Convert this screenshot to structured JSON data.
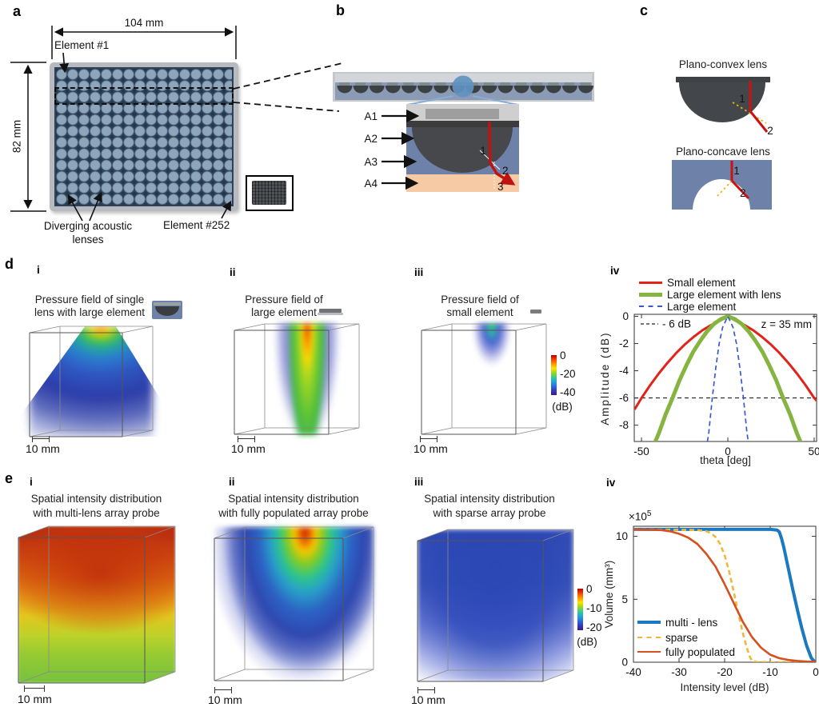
{
  "figure": {
    "panel_a": {
      "label": "a",
      "width_dim": "104 mm",
      "height_dim": "82 mm",
      "element_first": "Element #1",
      "element_last": "Element #252",
      "lens_caption_line1": "Diverging acoustic",
      "lens_caption_line2": "lenses"
    },
    "panel_b": {
      "label": "b",
      "layer_labels": [
        "A1",
        "A2",
        "A3",
        "A4"
      ],
      "ray_point_labels": [
        "1",
        "2",
        "3"
      ]
    },
    "panel_c": {
      "label": "c",
      "convex_title": "Plano-convex lens",
      "concave_title": "Plano-concave lens",
      "convex_ray_points": [
        "1",
        "2"
      ],
      "concave_ray_points": [
        "1",
        "2"
      ]
    },
    "panel_d": {
      "label": "d",
      "i": {
        "num": "i",
        "title_line1": "Pressure field of single",
        "title_line2": "lens with large element",
        "scalebar": "10 mm"
      },
      "ii": {
        "num": "ii",
        "title_line1": "Pressure field of",
        "title_line2": "large element",
        "scalebar": "10 mm"
      },
      "iii": {
        "num": "iii",
        "title_line1": "Pressure field of",
        "title_line2": "small element",
        "scalebar": "10 mm"
      },
      "iv": {
        "num": "iv"
      },
      "colorbar": {
        "ticks": [
          "0",
          "-20",
          "-40"
        ],
        "unit": "(dB)"
      }
    },
    "panel_e": {
      "label": "e",
      "i": {
        "num": "i",
        "title_line1": "Spatial intensity distribution",
        "title_line2": "with multi-lens array probe",
        "scalebar": "10 mm"
      },
      "ii": {
        "num": "ii",
        "title_line1": "Spatial intensity distribution",
        "title_line2": "with fully populated array probe",
        "scalebar": "10 mm"
      },
      "iii": {
        "num": "iii",
        "title_line1": "Spatial intensity distribution",
        "title_line2": "with sparse array probe",
        "scalebar": "10 mm"
      },
      "iv": {
        "num": "iv"
      },
      "colorbar": {
        "ticks": [
          "0",
          "-10",
          "-20"
        ],
        "unit": "(dB)"
      }
    }
  },
  "chart_data": [
    {
      "id": "element-directivity",
      "type": "line",
      "title": "",
      "xlabel": "theta [deg]",
      "ylabel": "Amplitude (dB)",
      "xlim": [
        -54.2,
        51.4
      ],
      "ylim": [
        -9.2,
        0.15
      ],
      "xticks": [
        -50,
        0,
        50
      ],
      "yticks": [
        0,
        -2,
        -4,
        -6,
        -8
      ],
      "grid": false,
      "legend_position": "above",
      "reference_line": {
        "y": -6,
        "label": "- 6 dB",
        "style": "dashed",
        "color": "#222222"
      },
      "annotation": "z = 35 mm",
      "series": [
        {
          "name": "Small element",
          "color": "#e32219",
          "style": "solid",
          "width": 3,
          "x": [
            -54,
            -50,
            -45,
            -40,
            -35,
            -30,
            -25,
            -20,
            -15,
            -10,
            -5,
            0,
            5,
            10,
            15,
            20,
            25,
            30,
            35,
            40,
            45,
            50,
            51.4
          ],
          "y": [
            -6.85,
            -6.0,
            -5.06,
            -4.2,
            -3.42,
            -2.71,
            -2.08,
            -1.53,
            -1.05,
            -0.66,
            -0.35,
            0,
            -0.35,
            -0.66,
            -1.05,
            -1.53,
            -2.08,
            -2.71,
            -3.42,
            -4.2,
            -5.06,
            -6.0,
            -6.2
          ]
        },
        {
          "name": "Large element with lens",
          "color": "#85b540",
          "style": "solid",
          "width": 5,
          "x": [
            -44,
            -40,
            -36,
            -32,
            -28,
            -24,
            -20,
            -16,
            -12,
            -8,
            -4,
            0,
            4,
            8,
            12,
            16,
            20,
            24,
            28,
            32,
            36,
            40,
            44
          ],
          "y": [
            -9.8,
            -8.6,
            -7.2,
            -6.0,
            -4.7,
            -3.6,
            -2.6,
            -1.8,
            -1.1,
            -0.55,
            -0.2,
            0,
            -0.2,
            -0.55,
            -1.1,
            -1.8,
            -2.6,
            -3.6,
            -4.7,
            -6.0,
            -7.2,
            -8.6,
            -9.8
          ]
        },
        {
          "name": "Large element",
          "color": "#3a5bd0",
          "style": "dashed",
          "width": 1.7,
          "x": [
            -12.5,
            -11,
            -9,
            -7,
            -5,
            -3,
            0,
            3,
            5,
            7,
            9,
            11,
            12.5
          ],
          "y": [
            -9.8,
            -8.5,
            -6.0,
            -3.8,
            -2.0,
            -0.8,
            0,
            -0.8,
            -2.0,
            -3.8,
            -6.0,
            -8.5,
            -9.8
          ]
        }
      ]
    },
    {
      "id": "volume-vs-intensity",
      "type": "line",
      "title": "",
      "xlabel": "Intensity level (dB)",
      "ylabel": "Volume (mm³)",
      "y_scale_label": "×10",
      "y_scale_exp": "5",
      "xlim": [
        -40,
        0
      ],
      "ylim": [
        0,
        10.8
      ],
      "xticks": [
        -40,
        -30,
        -20,
        -10,
        0
      ],
      "yticks": [
        0,
        5,
        10
      ],
      "grid": false,
      "legend_position": "lower-left",
      "series": [
        {
          "name": "multi - lens",
          "color": "#1a79c0",
          "style": "solid",
          "width": 4,
          "x": [
            -40,
            -12,
            -10,
            -8.5,
            -8,
            -7.5,
            -7,
            -6,
            -5,
            -4,
            -3,
            -2,
            -1,
            -0.3,
            0
          ],
          "y": [
            10.55,
            10.55,
            10.55,
            10.5,
            10.35,
            9.8,
            9.1,
            7.4,
            5.7,
            4.1,
            2.6,
            1.3,
            0.35,
            0.05,
            0
          ]
        },
        {
          "name": "sparse",
          "color": "#efb73c",
          "style": "dashed",
          "width": 2.6,
          "x": [
            -40,
            -26,
            -24,
            -23,
            -22,
            -21,
            -20,
            -19,
            -18,
            -17,
            -16,
            -15,
            -14.5,
            -14,
            -13,
            -10,
            -5,
            0
          ],
          "y": [
            10.55,
            10.5,
            10.4,
            10.25,
            9.95,
            9.4,
            8.5,
            7.2,
            5.6,
            3.9,
            2.3,
            1.0,
            0.45,
            0.1,
            0.02,
            0,
            0,
            0
          ]
        },
        {
          "name": "fully populated",
          "color": "#d4501e",
          "style": "solid",
          "width": 2.6,
          "x": [
            -40,
            -34,
            -32,
            -30,
            -28,
            -26,
            -24,
            -22,
            -20,
            -18,
            -16,
            -14,
            -12,
            -10,
            -8,
            -6,
            -4,
            -2,
            0
          ],
          "y": [
            10.55,
            10.5,
            10.4,
            10.2,
            9.9,
            9.4,
            8.6,
            7.6,
            6.2,
            4.7,
            3.2,
            2.0,
            1.15,
            0.6,
            0.32,
            0.18,
            0.1,
            0.05,
            0.03
          ]
        }
      ]
    }
  ]
}
